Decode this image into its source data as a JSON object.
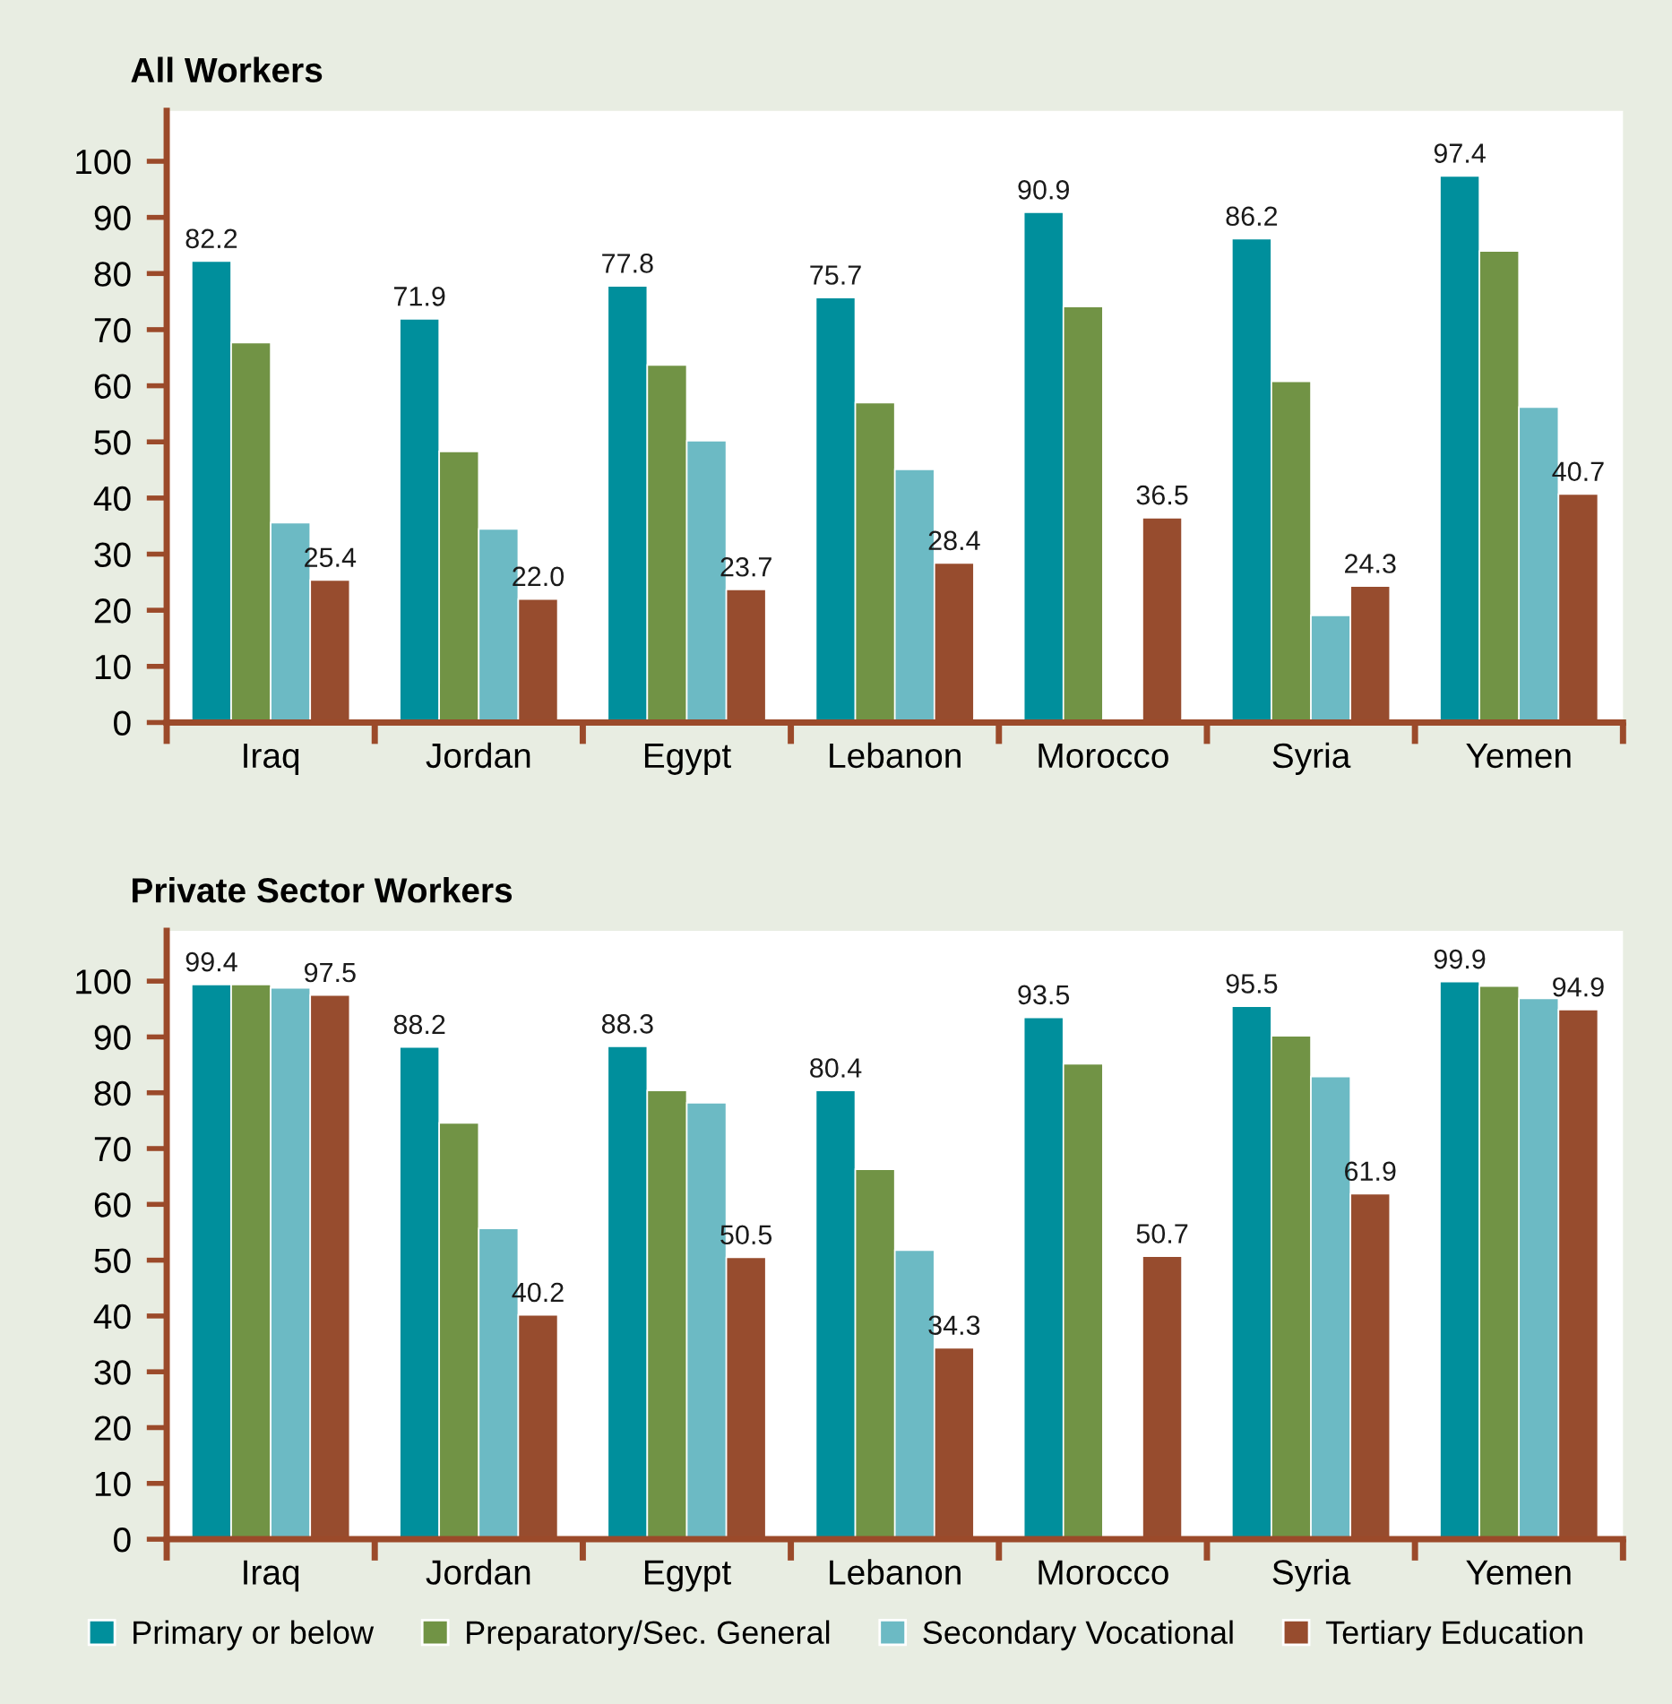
{
  "chart_data": [
    {
      "type": "bar",
      "title": "All Workers",
      "categories": [
        "Iraq",
        "Jordan",
        "Egypt",
        "Lebanon",
        "Morocco",
        "Syria",
        "Yemen"
      ],
      "series": [
        {
          "color": "#008f9c",
          "values": [
            82.2,
            71.9,
            77.8,
            75.7,
            90.9,
            86.2,
            97.4
          ],
          "value_labels": [
            "82.2",
            "71.9",
            "77.8",
            "75.7",
            "90.9",
            "86.2",
            "97.4"
          ]
        },
        {
          "color": "#719345",
          "values": [
            67.7,
            48.3,
            63.7,
            57.0,
            74.1,
            60.8,
            84.0
          ],
          "value_labels": [
            null,
            null,
            null,
            null,
            null,
            null,
            null
          ]
        },
        {
          "color": "#6cbac4",
          "values": [
            35.6,
            34.5,
            50.2,
            45.1,
            null,
            19.1,
            56.2
          ],
          "value_labels": [
            null,
            null,
            null,
            null,
            null,
            null,
            null
          ]
        },
        {
          "color": "#974c2e",
          "values": [
            25.4,
            22.0,
            23.7,
            28.4,
            36.5,
            24.3,
            40.7
          ],
          "value_labels": [
            "25.4",
            "22.0",
            "23.7",
            "28.4",
            "36.5",
            "24.3",
            "40.7"
          ]
        }
      ],
      "ylim": [
        0,
        109
      ],
      "yticks": [
        0,
        10,
        20,
        30,
        40,
        50,
        60,
        70,
        80,
        90,
        100
      ],
      "grid": false,
      "legend": false
    },
    {
      "type": "bar",
      "title": "Private Sector Workers",
      "categories": [
        "Iraq",
        "Jordan",
        "Egypt",
        "Lebanon",
        "Morocco",
        "Syria",
        "Yemen"
      ],
      "series": [
        {
          "name": "Primary or below",
          "color": "#008f9c",
          "values": [
            99.4,
            88.2,
            88.3,
            80.4,
            93.5,
            95.5,
            99.9
          ],
          "value_labels": [
            "99.4",
            "88.2",
            "88.3",
            "80.4",
            "93.5",
            "95.5",
            "99.9"
          ]
        },
        {
          "name": "Preparatory/Sec. General",
          "color": "#719345",
          "values": [
            99.4,
            74.6,
            80.4,
            66.3,
            85.2,
            90.2,
            99.1
          ],
          "value_labels": [
            null,
            null,
            null,
            null,
            null,
            null,
            null
          ]
        },
        {
          "name": "Secondary Vocational",
          "color": "#6cbac4",
          "values": [
            98.8,
            55.7,
            78.2,
            51.8,
            null,
            82.9,
            96.9
          ],
          "value_labels": [
            null,
            null,
            null,
            null,
            null,
            null,
            null
          ]
        },
        {
          "name": "Tertiary Education",
          "color": "#974c2e",
          "values": [
            97.5,
            40.2,
            50.5,
            34.3,
            50.7,
            61.9,
            94.9
          ],
          "value_labels": [
            "97.5",
            "40.2",
            "50.5",
            "34.3",
            "50.7",
            "61.9",
            "94.9"
          ]
        }
      ],
      "ylim": [
        0,
        109
      ],
      "yticks": [
        0,
        10,
        20,
        30,
        40,
        50,
        60,
        70,
        80,
        90,
        100
      ],
      "grid": false,
      "legend": "bottom"
    }
  ]
}
